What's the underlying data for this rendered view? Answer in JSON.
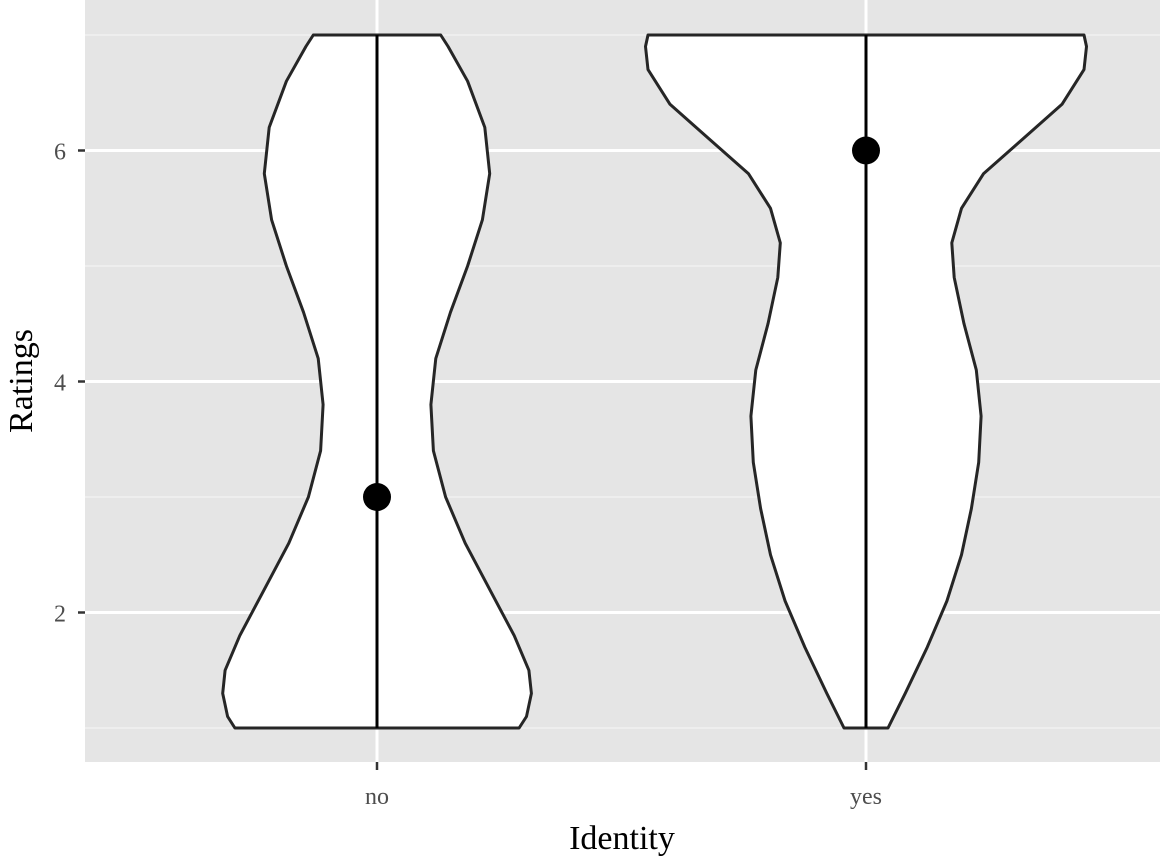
{
  "chart_data": {
    "type": "violin",
    "xlabel": "Identity",
    "ylabel": "Ratings",
    "categories": [
      "no",
      "yes"
    ],
    "ylim": [
      0.85,
      7.15
    ],
    "y_ticks": [
      2,
      4,
      6
    ],
    "y_minor_grid": [
      1,
      3,
      5,
      7
    ],
    "grid": true,
    "background": "#e5e5e5",
    "violin_fill": "#ffffff",
    "violin_outline": "#262626",
    "range_lines": [
      {
        "category": "no",
        "min": 1,
        "max": 7
      },
      {
        "category": "yes",
        "min": 1,
        "max": 7
      }
    ],
    "points": [
      {
        "category": "no",
        "y": 3
      },
      {
        "category": "yes",
        "y": 6
      }
    ],
    "violins": [
      {
        "category": "no",
        "profile": [
          [
            1.0,
            0.58
          ],
          [
            1.1,
            0.61
          ],
          [
            1.3,
            0.63
          ],
          [
            1.5,
            0.62
          ],
          [
            1.8,
            0.56
          ],
          [
            2.2,
            0.46
          ],
          [
            2.6,
            0.36
          ],
          [
            3.0,
            0.28
          ],
          [
            3.4,
            0.23
          ],
          [
            3.8,
            0.22
          ],
          [
            4.2,
            0.24
          ],
          [
            4.6,
            0.3
          ],
          [
            5.0,
            0.37
          ],
          [
            5.4,
            0.43
          ],
          [
            5.8,
            0.46
          ],
          [
            6.2,
            0.44
          ],
          [
            6.6,
            0.37
          ],
          [
            6.9,
            0.29
          ],
          [
            7.0,
            0.26
          ]
        ]
      },
      {
        "category": "yes",
        "profile": [
          [
            1.0,
            0.09
          ],
          [
            1.3,
            0.16
          ],
          [
            1.7,
            0.25
          ],
          [
            2.1,
            0.33
          ],
          [
            2.5,
            0.39
          ],
          [
            2.9,
            0.43
          ],
          [
            3.3,
            0.46
          ],
          [
            3.7,
            0.47
          ],
          [
            4.1,
            0.45
          ],
          [
            4.5,
            0.4
          ],
          [
            4.9,
            0.36
          ],
          [
            5.2,
            0.35
          ],
          [
            5.5,
            0.39
          ],
          [
            5.8,
            0.48
          ],
          [
            6.1,
            0.64
          ],
          [
            6.4,
            0.8
          ],
          [
            6.7,
            0.89
          ],
          [
            6.9,
            0.9
          ],
          [
            7.0,
            0.89
          ]
        ]
      }
    ]
  }
}
